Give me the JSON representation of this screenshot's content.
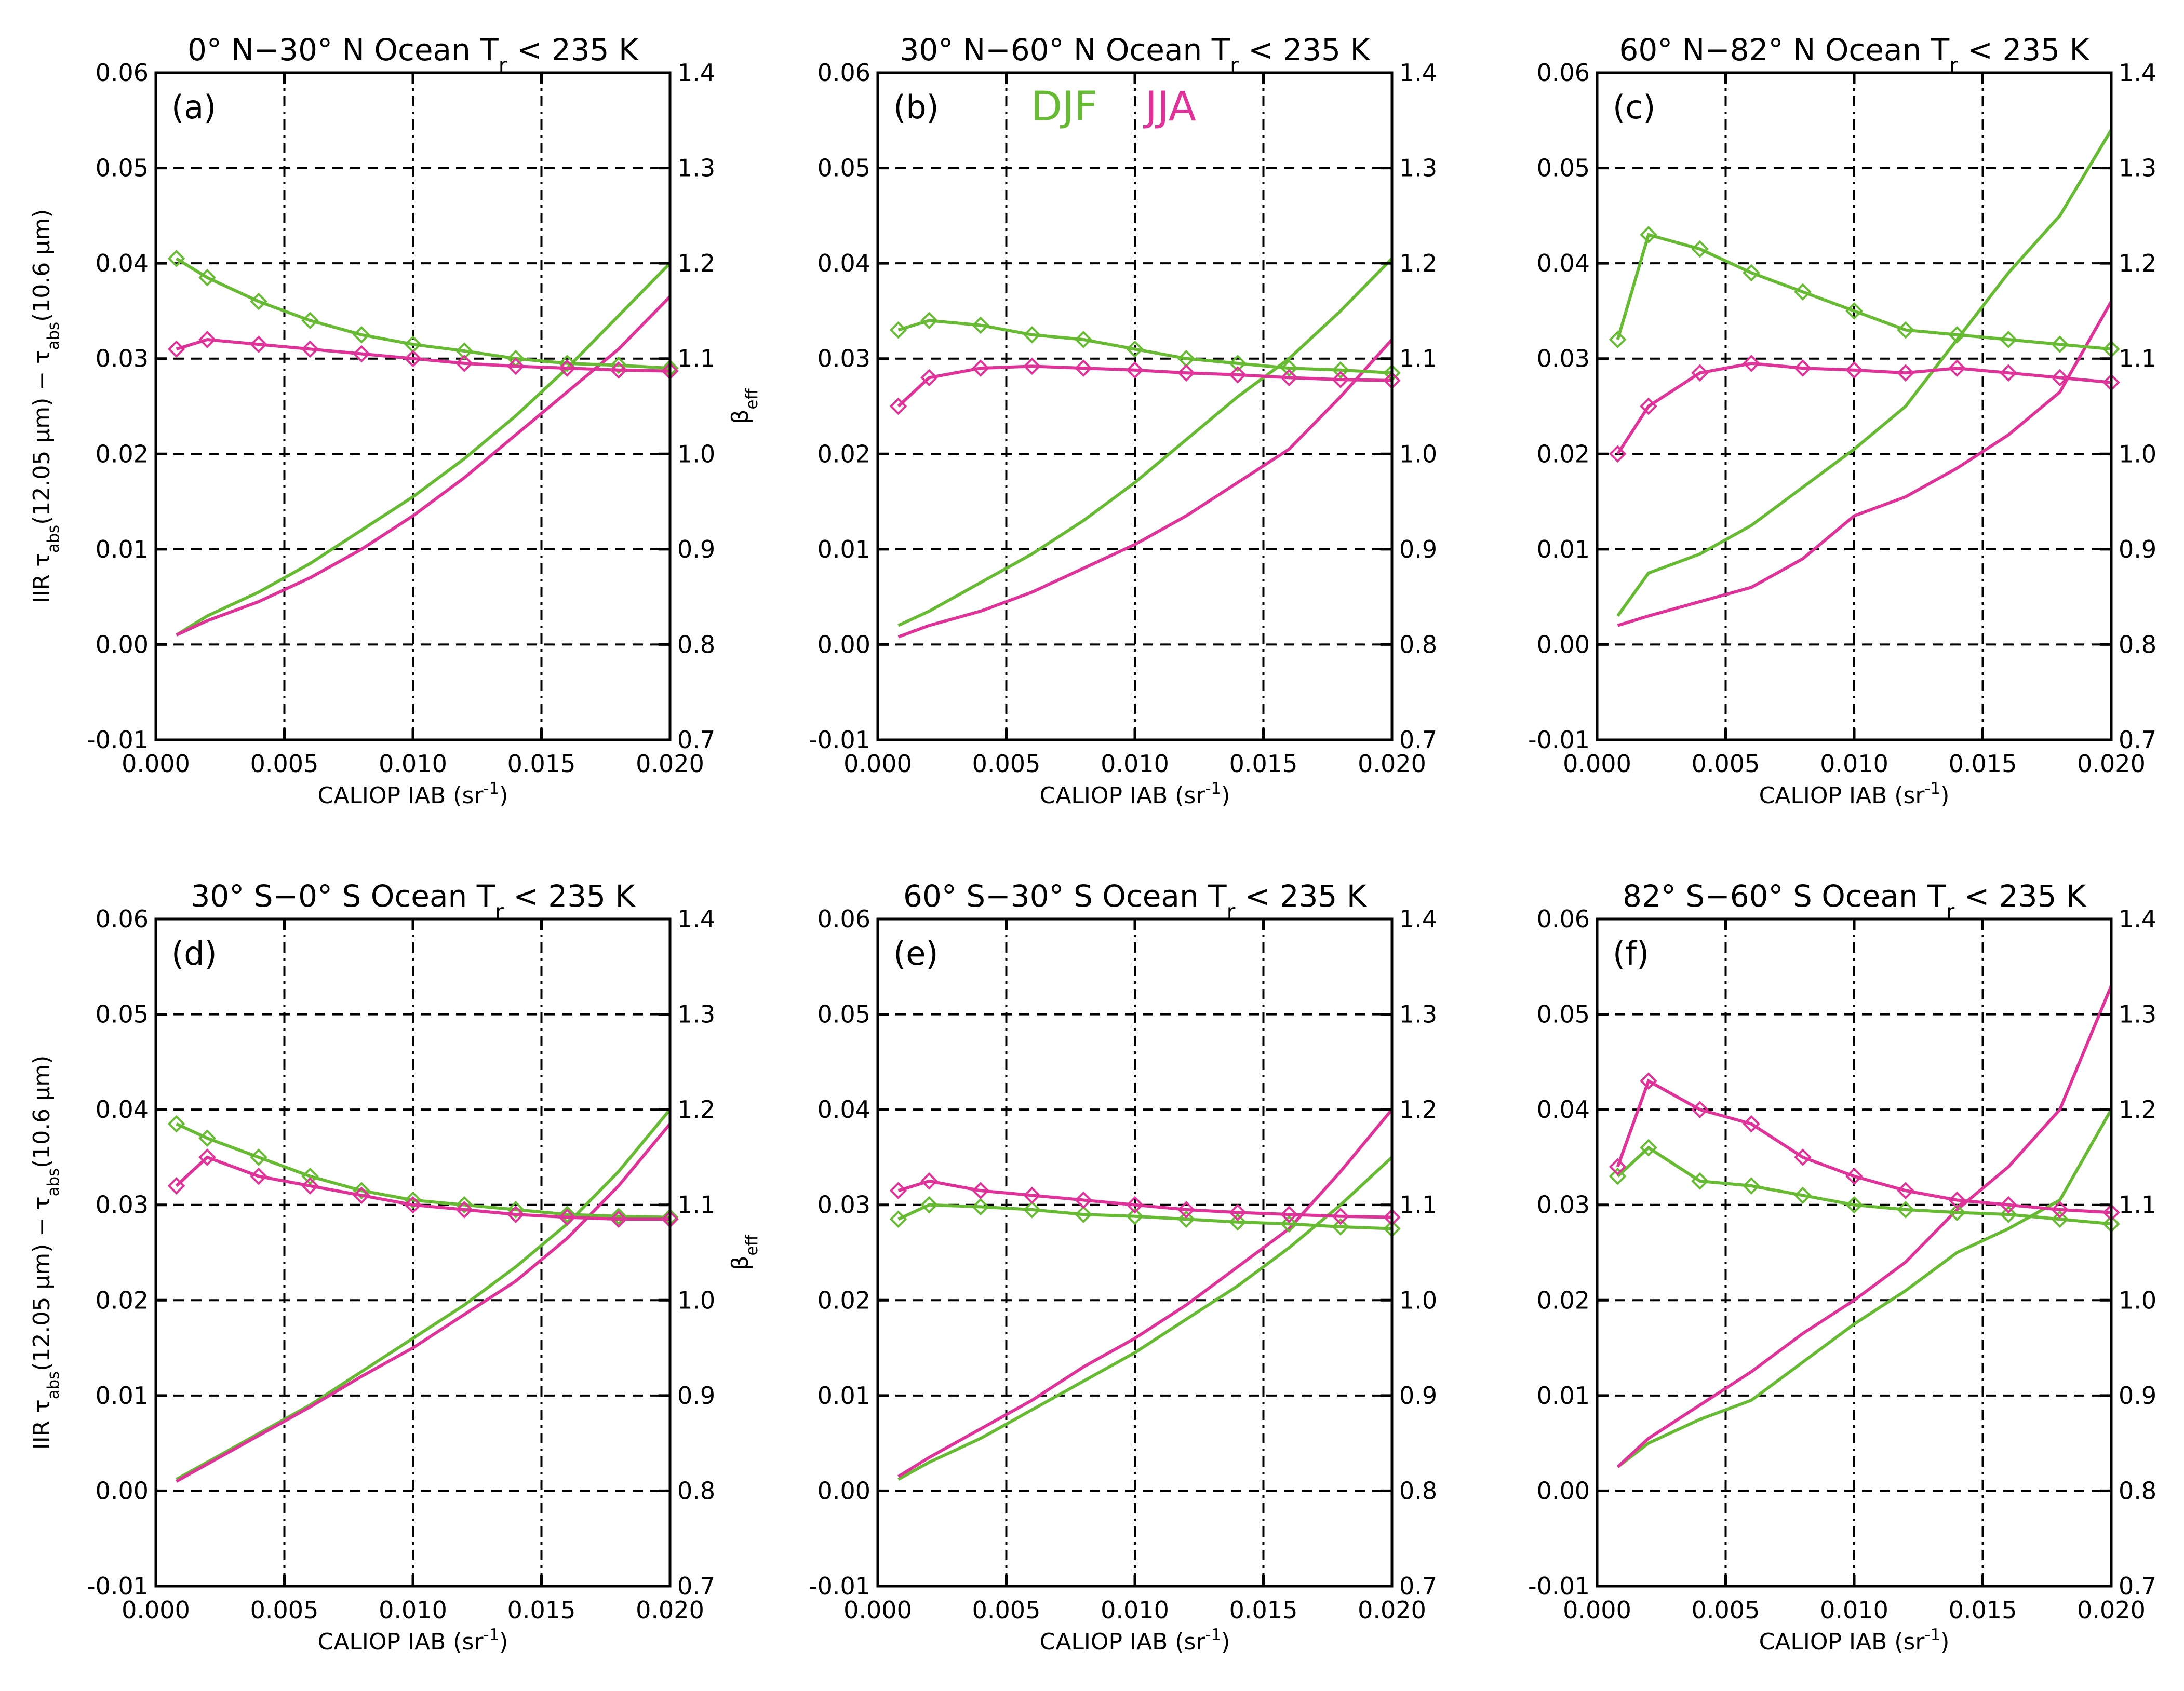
{
  "colors": {
    "DJF": "#66bb33",
    "JJA": "#e0339a",
    "axes": "#000000"
  },
  "shared_axes": {
    "xlabel": "CALIOP IAB (sr",
    "xlabel_sup": "-1",
    "xlabel_end": ")",
    "ylabel_left": {
      "a": "IIR τ",
      "a_sub": "abs",
      "b": "(12.05 μm) − τ",
      "b_sub": "abs",
      "c": "(10.6 μm)"
    },
    "ylabel_right": {
      "main": "β",
      "sub": "eff"
    },
    "x_ticks": [
      "0.000",
      "0.005",
      "0.010",
      "0.015",
      "0.020"
    ],
    "y_left_ticks": [
      "-0.01",
      "0.00",
      "0.01",
      "0.02",
      "0.03",
      "0.04",
      "0.05",
      "0.06"
    ],
    "y_right_ticks": [
      "0.7",
      "0.8",
      "0.9",
      "1.0",
      "1.1",
      "1.2",
      "1.3",
      "1.4"
    ]
  },
  "legend": {
    "DJF": "DJF",
    "JJA": "JJA"
  },
  "chart_data": [
    {
      "type": "line",
      "panel": "(a)",
      "title": "0° N−30° N Ocean T",
      "title_sub": "r",
      "title_end": " < 235 K",
      "xlim": [
        0,
        0.02
      ],
      "ylim_left": [
        -0.01,
        0.06
      ],
      "ylim_right": [
        0.7,
        1.4
      ],
      "x": [
        0.0008,
        0.002,
        0.004,
        0.006,
        0.008,
        0.01,
        0.012,
        0.014,
        0.016,
        0.018,
        0.02
      ],
      "series": [
        {
          "name": "DJF",
          "axis": "left",
          "style": "line",
          "values": [
            0.001,
            0.003,
            0.0055,
            0.0085,
            0.012,
            0.0155,
            0.0195,
            0.024,
            0.029,
            0.0345,
            0.04
          ]
        },
        {
          "name": "JJA",
          "axis": "left",
          "style": "line",
          "values": [
            0.001,
            0.0025,
            0.0045,
            0.007,
            0.01,
            0.0135,
            0.0175,
            0.022,
            0.0265,
            0.031,
            0.0365
          ]
        },
        {
          "name": "DJF",
          "axis": "right",
          "style": "markers",
          "values": [
            1.205,
            1.185,
            1.16,
            1.14,
            1.125,
            1.115,
            1.108,
            1.1,
            1.095,
            1.093,
            1.09
          ]
        },
        {
          "name": "JJA",
          "axis": "right",
          "style": "markers",
          "values": [
            1.11,
            1.12,
            1.115,
            1.11,
            1.105,
            1.1,
            1.095,
            1.092,
            1.09,
            1.088,
            1.087
          ]
        }
      ]
    },
    {
      "type": "line",
      "panel": "(b)",
      "title": "30° N−60° N Ocean T",
      "title_sub": "r",
      "title_end": " < 235 K",
      "xlim": [
        0,
        0.02
      ],
      "ylim_left": [
        -0.01,
        0.06
      ],
      "ylim_right": [
        0.7,
        1.4
      ],
      "x": [
        0.0008,
        0.002,
        0.004,
        0.006,
        0.008,
        0.01,
        0.012,
        0.014,
        0.016,
        0.018,
        0.02
      ],
      "series": [
        {
          "name": "DJF",
          "axis": "left",
          "style": "line",
          "values": [
            0.002,
            0.0035,
            0.0065,
            0.0095,
            0.013,
            0.017,
            0.0215,
            0.026,
            0.03,
            0.035,
            0.0405
          ]
        },
        {
          "name": "JJA",
          "axis": "left",
          "style": "line",
          "values": [
            0.0008,
            0.002,
            0.0035,
            0.0055,
            0.008,
            0.0105,
            0.0135,
            0.017,
            0.0205,
            0.026,
            0.032
          ]
        },
        {
          "name": "DJF",
          "axis": "right",
          "style": "markers",
          "values": [
            1.13,
            1.14,
            1.135,
            1.125,
            1.12,
            1.11,
            1.1,
            1.095,
            1.09,
            1.088,
            1.085
          ]
        },
        {
          "name": "JJA",
          "axis": "right",
          "style": "markers",
          "values": [
            1.05,
            1.08,
            1.09,
            1.092,
            1.09,
            1.088,
            1.085,
            1.083,
            1.08,
            1.078,
            1.077
          ]
        }
      ]
    },
    {
      "type": "line",
      "panel": "(c)",
      "title": "60° N−82° N Ocean T",
      "title_sub": "r",
      "title_end": " < 235 K",
      "xlim": [
        0,
        0.02
      ],
      "ylim_left": [
        -0.01,
        0.06
      ],
      "ylim_right": [
        0.7,
        1.4
      ],
      "x": [
        0.0008,
        0.002,
        0.004,
        0.006,
        0.008,
        0.01,
        0.012,
        0.014,
        0.016,
        0.018,
        0.02
      ],
      "series": [
        {
          "name": "DJF",
          "axis": "left",
          "style": "line",
          "values": [
            0.003,
            0.0075,
            0.0095,
            0.0125,
            0.0165,
            0.0205,
            0.025,
            0.032,
            0.039,
            0.045,
            0.054
          ]
        },
        {
          "name": "JJA",
          "axis": "left",
          "style": "line",
          "values": [
            0.002,
            0.003,
            0.0045,
            0.006,
            0.009,
            0.0135,
            0.0155,
            0.0185,
            0.022,
            0.0265,
            0.036
          ]
        },
        {
          "name": "DJF",
          "axis": "right",
          "style": "markers",
          "values": [
            1.12,
            1.23,
            1.215,
            1.19,
            1.17,
            1.15,
            1.13,
            1.125,
            1.12,
            1.115,
            1.11
          ]
        },
        {
          "name": "JJA",
          "axis": "right",
          "style": "markers",
          "values": [
            1.0,
            1.05,
            1.085,
            1.095,
            1.09,
            1.088,
            1.085,
            1.09,
            1.085,
            1.08,
            1.075
          ]
        }
      ]
    },
    {
      "type": "line",
      "panel": "(d)",
      "title": "30° S−0° S Ocean T",
      "title_sub": "r",
      "title_end": " < 235 K",
      "xlim": [
        0,
        0.02
      ],
      "ylim_left": [
        -0.01,
        0.06
      ],
      "ylim_right": [
        0.7,
        1.4
      ],
      "x": [
        0.0008,
        0.002,
        0.004,
        0.006,
        0.008,
        0.01,
        0.012,
        0.014,
        0.016,
        0.018,
        0.02
      ],
      "series": [
        {
          "name": "DJF",
          "axis": "left",
          "style": "line",
          "values": [
            0.0012,
            0.003,
            0.006,
            0.009,
            0.0125,
            0.016,
            0.0195,
            0.0235,
            0.028,
            0.0335,
            0.04
          ]
        },
        {
          "name": "JJA",
          "axis": "left",
          "style": "line",
          "values": [
            0.001,
            0.0028,
            0.0058,
            0.0088,
            0.012,
            0.015,
            0.0185,
            0.022,
            0.0265,
            0.032,
            0.0385
          ]
        },
        {
          "name": "DJF",
          "axis": "right",
          "style": "markers",
          "values": [
            1.185,
            1.17,
            1.15,
            1.13,
            1.115,
            1.105,
            1.1,
            1.095,
            1.09,
            1.088,
            1.087
          ]
        },
        {
          "name": "JJA",
          "axis": "right",
          "style": "markers",
          "values": [
            1.12,
            1.15,
            1.13,
            1.12,
            1.11,
            1.1,
            1.095,
            1.09,
            1.087,
            1.085,
            1.085
          ]
        }
      ]
    },
    {
      "type": "line",
      "panel": "(e)",
      "title": "60° S−30° S Ocean T",
      "title_sub": "r",
      "title_end": " < 235 K",
      "xlim": [
        0,
        0.02
      ],
      "ylim_left": [
        -0.01,
        0.06
      ],
      "ylim_right": [
        0.7,
        1.4
      ],
      "x": [
        0.0008,
        0.002,
        0.004,
        0.006,
        0.008,
        0.01,
        0.012,
        0.014,
        0.016,
        0.018,
        0.02
      ],
      "series": [
        {
          "name": "DJF",
          "axis": "left",
          "style": "line",
          "values": [
            0.0012,
            0.003,
            0.0055,
            0.0085,
            0.0115,
            0.0145,
            0.018,
            0.0215,
            0.0255,
            0.03,
            0.035
          ]
        },
        {
          "name": "JJA",
          "axis": "left",
          "style": "line",
          "values": [
            0.0015,
            0.0035,
            0.0065,
            0.0095,
            0.013,
            0.016,
            0.0195,
            0.0235,
            0.0275,
            0.0335,
            0.04
          ]
        },
        {
          "name": "DJF",
          "axis": "right",
          "style": "markers",
          "values": [
            1.085,
            1.1,
            1.098,
            1.095,
            1.09,
            1.088,
            1.085,
            1.082,
            1.08,
            1.077,
            1.075
          ]
        },
        {
          "name": "JJA",
          "axis": "right",
          "style": "markers",
          "values": [
            1.115,
            1.125,
            1.115,
            1.11,
            1.105,
            1.1,
            1.095,
            1.092,
            1.09,
            1.088,
            1.087
          ]
        }
      ]
    },
    {
      "type": "line",
      "panel": "(f)",
      "title": "82° S−60° S Ocean T",
      "title_sub": "r",
      "title_end": " < 235 K",
      "xlim": [
        0,
        0.02
      ],
      "ylim_left": [
        -0.01,
        0.06
      ],
      "ylim_right": [
        0.7,
        1.4
      ],
      "x": [
        0.0008,
        0.002,
        0.004,
        0.006,
        0.008,
        0.01,
        0.012,
        0.014,
        0.016,
        0.018,
        0.02
      ],
      "series": [
        {
          "name": "DJF",
          "axis": "left",
          "style": "line",
          "values": [
            0.0025,
            0.005,
            0.0075,
            0.0095,
            0.0135,
            0.0175,
            0.021,
            0.025,
            0.0275,
            0.0305,
            0.04
          ]
        },
        {
          "name": "JJA",
          "axis": "left",
          "style": "line",
          "values": [
            0.0025,
            0.0055,
            0.009,
            0.0125,
            0.0165,
            0.02,
            0.024,
            0.0295,
            0.034,
            0.04,
            0.053
          ]
        },
        {
          "name": "DJF",
          "axis": "right",
          "style": "markers",
          "values": [
            1.13,
            1.16,
            1.125,
            1.12,
            1.11,
            1.1,
            1.095,
            1.092,
            1.09,
            1.085,
            1.08
          ]
        },
        {
          "name": "JJA",
          "axis": "right",
          "style": "markers",
          "values": [
            1.14,
            1.23,
            1.2,
            1.185,
            1.15,
            1.13,
            1.115,
            1.105,
            1.1,
            1.095,
            1.092
          ]
        }
      ]
    }
  ]
}
